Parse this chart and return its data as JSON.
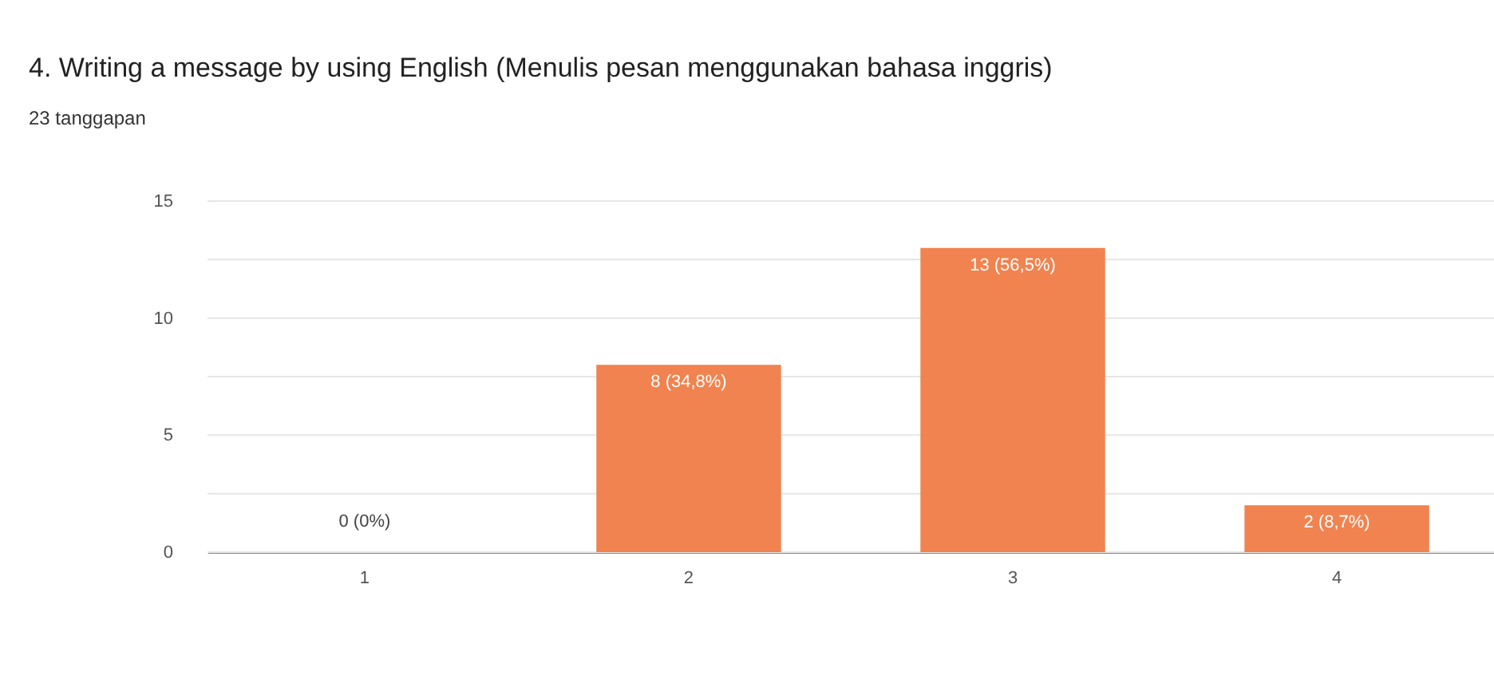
{
  "chart_data": {
    "type": "bar",
    "title": "4. Writing a message by using English (Menulis pesan menggunakan bahasa inggris)",
    "subtitle": "23 tanggapan",
    "categories": [
      "1",
      "2",
      "3",
      "4"
    ],
    "values": [
      0,
      8,
      13,
      2
    ],
    "color": "#f0834f",
    "value_labels": [
      "0 (0%)",
      "8 (34,8%)",
      "13 (56,5%)",
      "2 (8,7%)"
    ],
    "ylim": [
      0,
      15
    ],
    "yticks": [
      0,
      {
        "value": 2.5,
        "label": null
      },
      5,
      {
        "value": 7.5,
        "label": null
      },
      10,
      {
        "value": 12.5,
        "label": null
      },
      15
    ],
    "grid": "y"
  }
}
